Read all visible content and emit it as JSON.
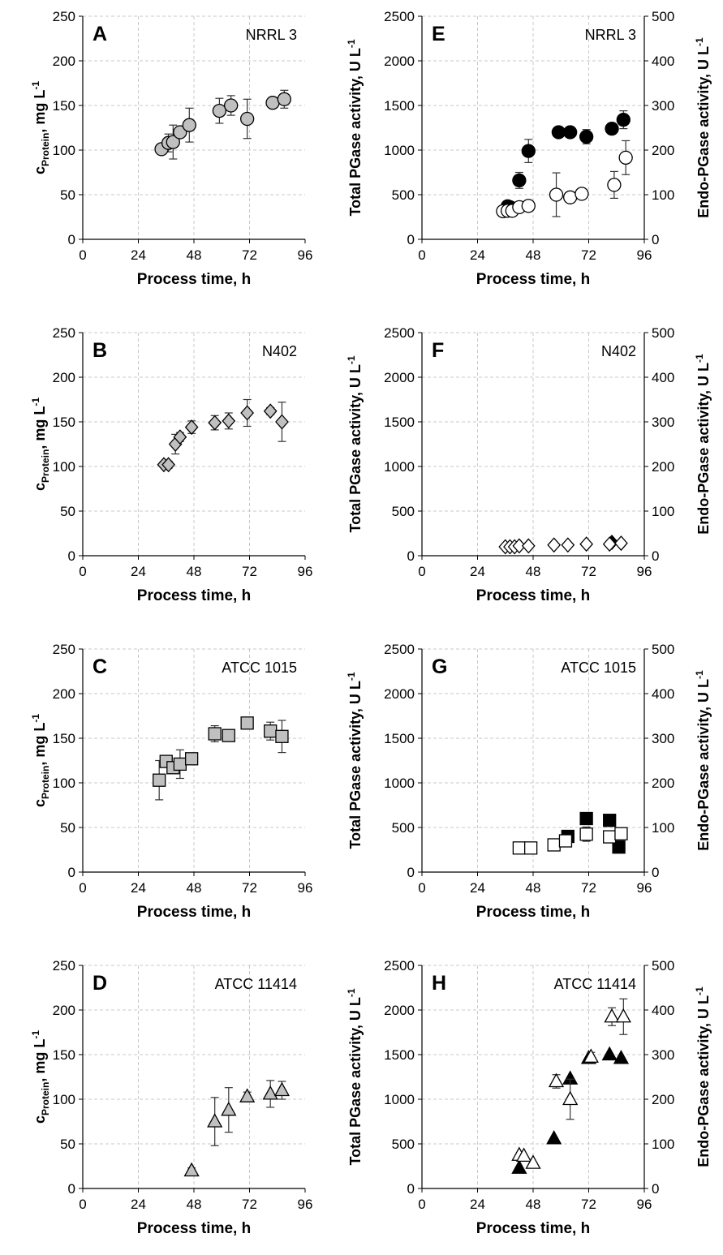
{
  "figure": {
    "x_label": "Process time, h",
    "left_ylabel": {
      "main": "c",
      "sub": "Protein",
      "after": ", mg L",
      "sup": "-1"
    },
    "total_label": {
      "main": "Total PGase activity, U L",
      "sup": "-1"
    },
    "endo_label": {
      "main": "Endo-PGase activity, U L",
      "sup": "-1"
    }
  },
  "chart_data": [
    {
      "panel": "A",
      "strain": "NRRL 3",
      "type": "scatter",
      "xlabel": "Process time, h",
      "ylabel": "cProtein, mg L-1",
      "xlim": [
        0,
        96
      ],
      "xticks": [
        0,
        24,
        48,
        72,
        96
      ],
      "ylim": [
        0,
        250
      ],
      "yticks": [
        0,
        50,
        100,
        150,
        200,
        250
      ],
      "grid": true,
      "series": [
        {
          "marker": "circle",
          "fill": "#c0c0c0",
          "x": [
            34,
            37,
            39,
            42,
            46,
            59,
            64,
            71,
            82,
            87
          ],
          "y": [
            101,
            108,
            109,
            120,
            128,
            144,
            150,
            135,
            153,
            157
          ],
          "err": [
            3,
            10,
            19,
            6,
            19,
            14,
            11,
            22,
            5,
            10
          ]
        }
      ]
    },
    {
      "panel": "B",
      "strain": "N402",
      "type": "scatter",
      "xlabel": "Process time, h",
      "ylabel": "cProtein, mg L-1",
      "xlim": [
        0,
        96
      ],
      "xticks": [
        0,
        24,
        48,
        72,
        96
      ],
      "ylim": [
        0,
        250
      ],
      "yticks": [
        0,
        50,
        100,
        150,
        200,
        250
      ],
      "grid": true,
      "series": [
        {
          "marker": "diamond",
          "fill": "#c0c0c0",
          "x": [
            35,
            37,
            40,
            42,
            47,
            57,
            63,
            71,
            81,
            86
          ],
          "y": [
            102,
            102,
            125,
            133,
            144,
            149,
            151,
            160,
            162,
            150
          ],
          "err": [
            3,
            4,
            11,
            5,
            7,
            8,
            9,
            15,
            4,
            22
          ]
        }
      ]
    },
    {
      "panel": "C",
      "strain": "ATCC 1015",
      "type": "scatter",
      "xlabel": "Process time, h",
      "ylabel": "cProtein, mg L-1",
      "xlim": [
        0,
        96
      ],
      "xticks": [
        0,
        24,
        48,
        72,
        96
      ],
      "ylim": [
        0,
        250
      ],
      "yticks": [
        0,
        50,
        100,
        150,
        200,
        250
      ],
      "grid": true,
      "series": [
        {
          "marker": "square",
          "fill": "#c0c0c0",
          "x": [
            33,
            36,
            39,
            42,
            47,
            57,
            63,
            71,
            81,
            86
          ],
          "y": [
            103,
            124,
            117,
            121,
            127,
            155,
            153,
            167,
            158,
            152
          ],
          "err": [
            22,
            5,
            5,
            16,
            4,
            9,
            4,
            5,
            10,
            18
          ]
        }
      ]
    },
    {
      "panel": "D",
      "strain": "ATCC 11414",
      "type": "scatter",
      "xlabel": "Process time, h",
      "ylabel": "cProtein, mg L-1",
      "xlim": [
        0,
        96
      ],
      "xticks": [
        0,
        24,
        48,
        72,
        96
      ],
      "ylim": [
        0,
        250
      ],
      "yticks": [
        0,
        50,
        100,
        150,
        200,
        250
      ],
      "grid": true,
      "series": [
        {
          "marker": "triangle",
          "fill": "#c0c0c0",
          "x": [
            47,
            57,
            63,
            71,
            81,
            86
          ],
          "y": [
            20,
            75,
            88,
            103,
            106,
            110
          ],
          "err": [
            3,
            27,
            25,
            5,
            15,
            10
          ]
        }
      ]
    },
    {
      "panel": "E",
      "strain": "NRRL 3",
      "type": "scatter",
      "xlabel": "Process time, h",
      "ylabel": "Total PGase activity, U L-1",
      "y2label": "Endo-PGase activity, U L-1",
      "xlim": [
        0,
        96
      ],
      "xticks": [
        0,
        24,
        48,
        72,
        96
      ],
      "ylim": [
        0,
        2500
      ],
      "yticks": [
        0,
        500,
        1000,
        1500,
        2000,
        2500
      ],
      "y2lim": [
        0,
        500
      ],
      "y2ticks": [
        0,
        100,
        200,
        300,
        400,
        500
      ],
      "grid": true,
      "series": [
        {
          "marker": "circle",
          "fill": "#000000",
          "axis": "left",
          "x": [
            37,
            38,
            42,
            46,
            59,
            64,
            71,
            82,
            87
          ],
          "y": [
            370,
            360,
            660,
            990,
            1200,
            1200,
            1150,
            1240,
            1340
          ],
          "err": [
            0,
            0,
            90,
            130,
            40,
            40,
            80,
            60,
            100
          ]
        },
        {
          "marker": "circle",
          "fill": "#ffffff",
          "axis": "right",
          "x": [
            35,
            37,
            39,
            42,
            46,
            58,
            64,
            69,
            83,
            88
          ],
          "y": [
            63,
            64,
            64,
            72,
            75,
            100,
            94,
            102,
            122,
            183
          ],
          "err": [
            5,
            6,
            4,
            5,
            4,
            49,
            12,
            10,
            30,
            38
          ]
        }
      ]
    },
    {
      "panel": "F",
      "strain": "N402",
      "type": "scatter",
      "xlabel": "Process time, h",
      "ylabel": "Total PGase activity, U L-1",
      "y2label": "Endo-PGase activity, U L-1",
      "xlim": [
        0,
        96
      ],
      "xticks": [
        0,
        24,
        48,
        72,
        96
      ],
      "ylim": [
        0,
        2500
      ],
      "yticks": [
        0,
        500,
        1000,
        1500,
        2000,
        2500
      ],
      "y2lim": [
        0,
        500
      ],
      "y2ticks": [
        0,
        100,
        200,
        300,
        400,
        500
      ],
      "grid": true,
      "series": [
        {
          "marker": "diamond",
          "fill": "#000000",
          "axis": "left",
          "x": [
            82
          ],
          "y": [
            150
          ],
          "err": [
            0
          ]
        },
        {
          "marker": "diamond",
          "fill": "#ffffff",
          "axis": "right",
          "x": [
            36,
            38,
            40,
            42,
            46,
            57,
            63,
            71,
            81,
            86
          ],
          "y": [
            20,
            20,
            20,
            22,
            22,
            24,
            24,
            26,
            26,
            28
          ],
          "err": [
            0,
            0,
            0,
            0,
            0,
            0,
            0,
            0,
            0,
            0
          ]
        }
      ]
    },
    {
      "panel": "G",
      "strain": "ATCC 1015",
      "type": "scatter",
      "xlabel": "Process time, h",
      "ylabel": "Total PGase activity, U L-1",
      "y2label": "Endo-PGase activity, U L-1",
      "xlim": [
        0,
        96
      ],
      "xticks": [
        0,
        24,
        48,
        72,
        96
      ],
      "ylim": [
        0,
        2500
      ],
      "yticks": [
        0,
        500,
        1000,
        1500,
        2000,
        2500
      ],
      "y2lim": [
        0,
        500
      ],
      "y2ticks": [
        0,
        100,
        200,
        300,
        400,
        500
      ],
      "grid": true,
      "series": [
        {
          "marker": "square",
          "fill": "#000000",
          "axis": "left",
          "x": [
            63,
            71,
            81,
            85
          ],
          "y": [
            400,
            600,
            580,
            280
          ],
          "err": [
            0,
            0,
            0,
            0
          ]
        },
        {
          "marker": "square",
          "fill": "#ffffff",
          "axis": "right",
          "x": [
            42,
            47,
            57,
            62,
            71,
            81,
            86
          ],
          "y": [
            54,
            54,
            61,
            70,
            85,
            79,
            86
          ],
          "err": [
            0,
            0,
            6,
            6,
            16,
            11,
            11
          ]
        }
      ]
    },
    {
      "panel": "H",
      "strain": "ATCC 11414",
      "type": "scatter",
      "xlabel": "Process time, h",
      "ylabel": "Total PGase activity, U L-1",
      "y2label": "Endo-PGase activity, U L-1",
      "xlim": [
        0,
        96
      ],
      "xticks": [
        0,
        24,
        48,
        72,
        96
      ],
      "ylim": [
        0,
        2500
      ],
      "yticks": [
        0,
        500,
        1000,
        1500,
        2000,
        2500
      ],
      "y2lim": [
        0,
        500
      ],
      "y2ticks": [
        0,
        100,
        200,
        300,
        400,
        500
      ],
      "grid": true,
      "series": [
        {
          "marker": "triangle",
          "fill": "#000000",
          "axis": "left",
          "x": [
            42,
            57,
            64,
            72,
            81,
            86
          ],
          "y": [
            230,
            560,
            1230,
            1460,
            1500,
            1460
          ],
          "err": [
            0,
            0,
            0,
            0,
            0,
            0
          ]
        },
        {
          "marker": "triangle",
          "fill": "#ffffff",
          "axis": "right",
          "x": [
            42,
            44,
            48,
            58,
            64,
            73,
            82,
            87
          ],
          "y": [
            75,
            73,
            57,
            240,
            200,
            295,
            385,
            385
          ],
          "err": [
            0,
            0,
            0,
            15,
            45,
            10,
            20,
            40
          ]
        }
      ]
    }
  ]
}
